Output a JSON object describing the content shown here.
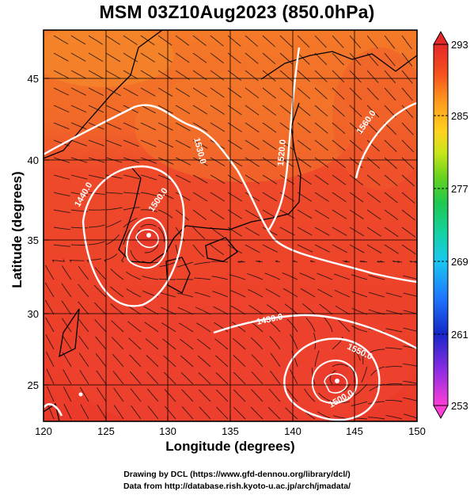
{
  "title": "MSM 03Z10Aug2023 (850.0hPa)",
  "xlabel": "Longitude (degrees)",
  "ylabel": "Latitude  (degrees)",
  "x_ticks": [
    "120",
    "125",
    "130",
    "135",
    "140",
    "145",
    "150"
  ],
  "y_ticks": [
    "25",
    "30",
    "35",
    "40",
    "45"
  ],
  "colorbar": {
    "min": 253,
    "max": 293,
    "ticks": [
      "253",
      "261",
      "269",
      "277",
      "285",
      "293"
    ],
    "colors": [
      "#ff3fd6",
      "#8a2be2",
      "#1428c8",
      "#1e78ff",
      "#19c8f0",
      "#14d2a0",
      "#1ec850",
      "#64d21e",
      "#c8e619",
      "#ffd21e",
      "#ff9b1e",
      "#f5501e",
      "#e62828"
    ]
  },
  "contour_labels": [
    "1440.0",
    "1500.0",
    "1530.0",
    "1520.0",
    "1560.0",
    "1430.0",
    "1550.0",
    "1500.0"
  ],
  "credits": {
    "line1": "Drawing by DCL (https://www.gfd-dennou.org/library/dcl/)",
    "line2": "Data from http://database.rish.kyoto-u.ac.jp/arch/jmadata/"
  },
  "chart_data": {
    "type": "heatmap",
    "title": "MSM 03Z10Aug2023 (850.0hPa)",
    "xlabel": "Longitude (degrees)",
    "ylabel": "Latitude  (degrees)",
    "xlim": [
      120,
      150
    ],
    "ylim": [
      22.4,
      47.6
    ],
    "field": "temperature (colour shading)",
    "colorbar_range": [
      253,
      293
    ],
    "contours": "geopotential height",
    "overlays": [
      "streamlines",
      "coastlines",
      "lat/lon grid"
    ],
    "lows": [
      {
        "lon": 128.5,
        "lat": 35.6
      },
      {
        "lon": 143.6,
        "lat": 25.4
      },
      {
        "lon": 123.0,
        "lat": 24.5
      }
    ]
  }
}
